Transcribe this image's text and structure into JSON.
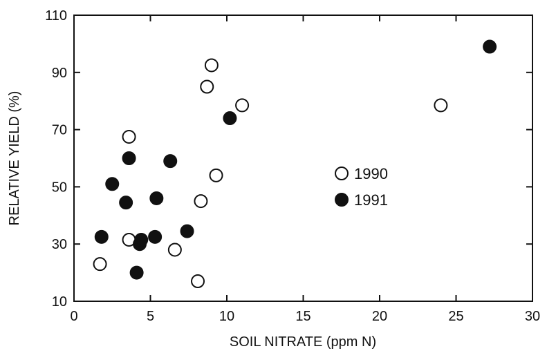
{
  "chart_data": {
    "type": "scatter",
    "title": "",
    "xlabel": "SOIL NITRATE (ppm N)",
    "ylabel": "RELATIVE YIELD (%)",
    "xlim": [
      0,
      30
    ],
    "ylim": [
      10,
      110
    ],
    "xticks": [
      0,
      5,
      10,
      15,
      20,
      25,
      30
    ],
    "yticks": [
      10,
      30,
      50,
      70,
      90,
      110
    ],
    "grid": false,
    "legend_position": "center-right",
    "series": [
      {
        "name": "1990",
        "marker": "open-circle",
        "color": "#111111",
        "points": [
          [
            1.7,
            23
          ],
          [
            3.6,
            67.5
          ],
          [
            3.6,
            31.5
          ],
          [
            6.6,
            28
          ],
          [
            8.1,
            17
          ],
          [
            8.3,
            45
          ],
          [
            8.7,
            85
          ],
          [
            9.0,
            92.5
          ],
          [
            9.3,
            54
          ],
          [
            11.0,
            78.5
          ],
          [
            24.0,
            78.5
          ]
        ]
      },
      {
        "name": "1991",
        "marker": "filled-circle",
        "color": "#111111",
        "points": [
          [
            1.8,
            32.5
          ],
          [
            2.5,
            51
          ],
          [
            3.4,
            44.5
          ],
          [
            3.6,
            60
          ],
          [
            4.1,
            20
          ],
          [
            4.3,
            30
          ],
          [
            4.4,
            31.5
          ],
          [
            5.3,
            32.5
          ],
          [
            5.4,
            46
          ],
          [
            6.3,
            59
          ],
          [
            7.4,
            34.5
          ],
          [
            10.2,
            74
          ],
          [
            27.2,
            99
          ]
        ]
      }
    ]
  }
}
